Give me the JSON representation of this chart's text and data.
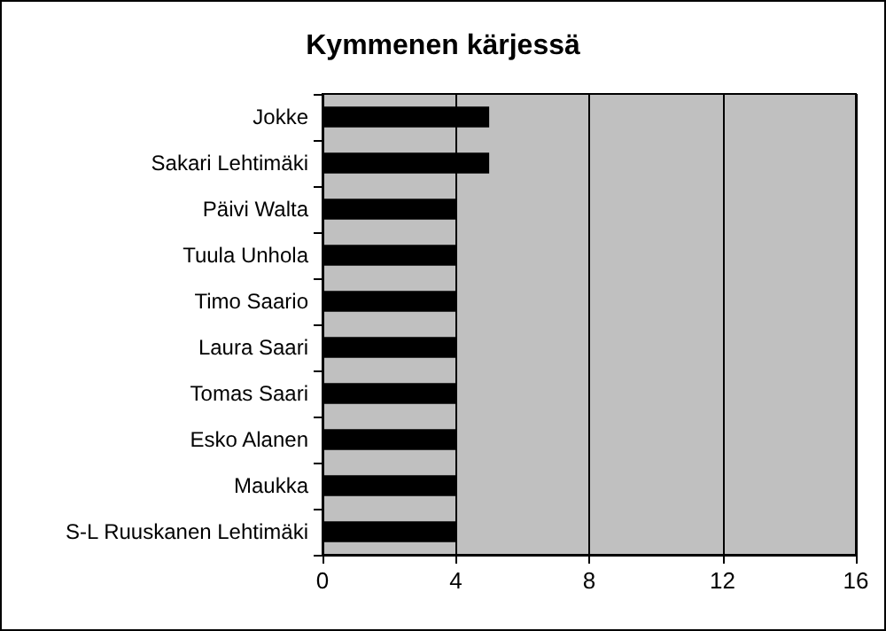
{
  "chart_data": {
    "type": "bar",
    "orientation": "horizontal",
    "title": "Kymmenen kärjessä",
    "categories": [
      "Jokke",
      "Sakari Lehtimäki",
      "Päivi Walta",
      "Tuula Unhola",
      "Timo Saario",
      "Laura Saari",
      "Tomas Saari",
      "Esko Alanen",
      "Maukka",
      "S-L Ruuskanen Lehtimäki"
    ],
    "values": [
      5,
      5,
      4,
      4,
      4,
      4,
      4,
      4,
      4,
      4
    ],
    "color": "#000000",
    "xlim": [
      0,
      16
    ],
    "xticks": [
      0,
      4,
      8,
      12,
      16
    ],
    "grid": "x"
  }
}
